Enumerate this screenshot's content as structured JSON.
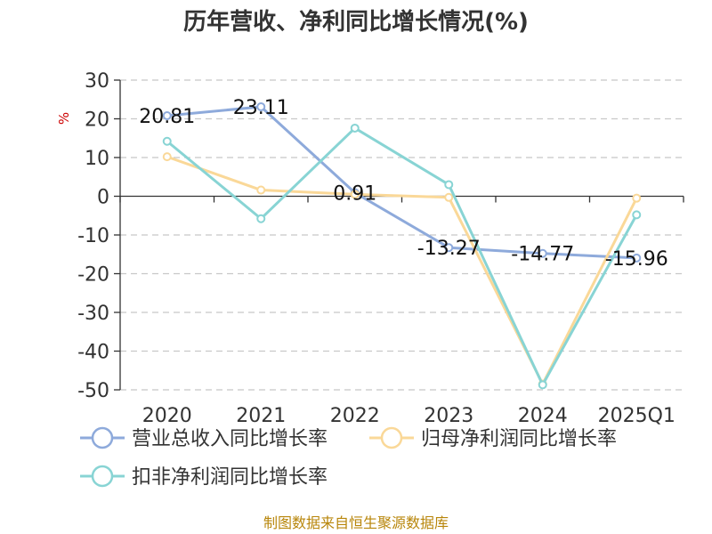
{
  "chart_data": {
    "type": "line",
    "title": "历年营收、净利同比增长情况(%)",
    "ylabel": "%",
    "categories": [
      "2020",
      "2021",
      "2022",
      "2023",
      "2024",
      "2025Q1"
    ],
    "ylim": [
      -50,
      30
    ],
    "yticks": [
      30,
      20,
      10,
      0,
      -10,
      -20,
      -30,
      -40,
      -50
    ],
    "grid": true,
    "legend_position": "bottom",
    "series": [
      {
        "name": "营业总收入同比增长率",
        "color": "#8eaadb",
        "values": [
          20.81,
          23.11,
          0.91,
          -13.27,
          -14.77,
          -15.96
        ],
        "labels": [
          "20.81",
          "23.11",
          "0.91",
          "-13.27",
          "-14.77",
          "-15.96"
        ]
      },
      {
        "name": "归母净利润同比增长率",
        "color": "#fad898",
        "values": [
          10.2,
          1.6,
          0.5,
          -0.3,
          -48.5,
          -0.5
        ]
      },
      {
        "name": "扣非净利润同比增长率",
        "color": "#88d4d4",
        "values": [
          14.2,
          -5.8,
          17.6,
          3.0,
          -48.7,
          -4.8
        ]
      }
    ]
  },
  "footer": {
    "source": "制图数据来自恒生聚源数据库"
  }
}
